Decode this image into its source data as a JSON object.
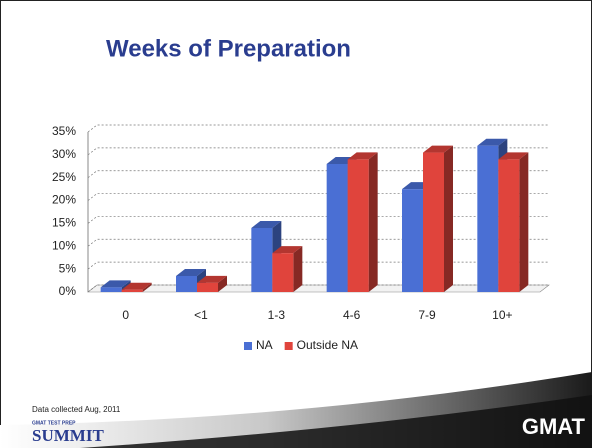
{
  "chart_data": {
    "type": "bar3d",
    "title": "Weeks of Preparation",
    "categories": [
      "0",
      "<1",
      "1-3",
      "4-6",
      "7-9",
      "10+"
    ],
    "series": [
      {
        "name": "NA",
        "color": "#4a6fd4",
        "values": [
          1,
          3.5,
          14,
          28,
          22.5,
          32
        ]
      },
      {
        "name": "Outside NA",
        "color": "#e0443c",
        "values": [
          0.5,
          2,
          8.5,
          29,
          30.5,
          29
        ]
      }
    ],
    "ylim": [
      0,
      35
    ],
    "yticks": [
      {
        "value": 0,
        "label": "0%"
      },
      {
        "value": 5,
        "label": "5%"
      },
      {
        "value": 10,
        "label": "10%"
      },
      {
        "value": 15,
        "label": "15%"
      },
      {
        "value": 20,
        "label": "20%"
      },
      {
        "value": 25,
        "label": "25%"
      },
      {
        "value": 30,
        "label": "30%"
      },
      {
        "value": 35,
        "label": "35%"
      }
    ],
    "grid": true,
    "legend": "bottom"
  },
  "footer": {
    "note": "Data collected Aug, 2011",
    "brand_small": "GMAT TEST PREP",
    "brand": "SUMMIT",
    "logo": "GMAT"
  }
}
